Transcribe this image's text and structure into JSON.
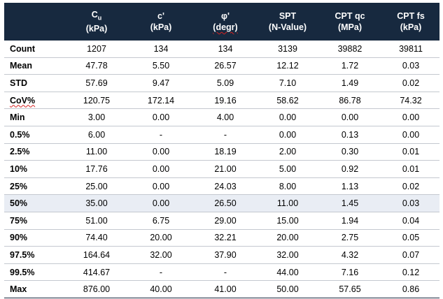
{
  "table": {
    "headers": [
      {
        "line1": "",
        "line2": ""
      },
      {
        "line1": "Cu",
        "line2": "(kPa)"
      },
      {
        "line1": "c'",
        "line2": "(kPa)"
      },
      {
        "line1": "φ'",
        "line2": "(degr)"
      },
      {
        "line1": "SPT",
        "line2": "(N-Value)"
      },
      {
        "line1": "CPT qc",
        "line2": "(MPa)"
      },
      {
        "line1": "CPT fs",
        "line2": "(kPa)"
      }
    ],
    "rows": [
      {
        "label": "Count",
        "cells": [
          "1207",
          "134",
          "134",
          "3139",
          "39882",
          "39811"
        ]
      },
      {
        "label": "Mean",
        "cells": [
          "47.78",
          "5.50",
          "26.57",
          "12.12",
          "1.72",
          "0.03"
        ]
      },
      {
        "label": "STD",
        "cells": [
          "57.69",
          "9.47",
          "5.09",
          "7.10",
          "1.49",
          "0.02"
        ]
      },
      {
        "label": "CoV%",
        "cells": [
          "120.75",
          "172.14",
          "19.16",
          "58.62",
          "86.78",
          "74.32"
        ]
      },
      {
        "label": "Min",
        "cells": [
          "3.00",
          "0.00",
          "4.00",
          "0.00",
          "0.00",
          "0.00"
        ]
      },
      {
        "label": "0.5%",
        "cells": [
          "6.00",
          "-",
          "-",
          "0.00",
          "0.13",
          "0.00"
        ]
      },
      {
        "label": "2.5%",
        "cells": [
          "11.00",
          "0.00",
          "18.19",
          "2.00",
          "0.30",
          "0.01"
        ]
      },
      {
        "label": "10%",
        "cells": [
          "17.76",
          "0.00",
          "21.00",
          "5.00",
          "0.92",
          "0.01"
        ]
      },
      {
        "label": "25%",
        "cells": [
          "25.00",
          "0.00",
          "24.03",
          "8.00",
          "1.13",
          "0.02"
        ]
      },
      {
        "label": "50%",
        "cells": [
          "35.00",
          "0.00",
          "26.50",
          "11.00",
          "1.45",
          "0.03"
        ]
      },
      {
        "label": "75%",
        "cells": [
          "51.00",
          "6.75",
          "29.00",
          "15.00",
          "1.94",
          "0.04"
        ]
      },
      {
        "label": "90%",
        "cells": [
          "74.40",
          "20.00",
          "32.21",
          "20.00",
          "2.75",
          "0.05"
        ]
      },
      {
        "label": "97.5%",
        "cells": [
          "164.64",
          "32.00",
          "37.90",
          "32.00",
          "4.32",
          "0.07"
        ]
      },
      {
        "label": "99.5%",
        "cells": [
          "414.67",
          "-",
          "-",
          "44.00",
          "7.16",
          "0.12"
        ]
      },
      {
        "label": "Max",
        "cells": [
          "876.00",
          "40.00",
          "41.00",
          "50.00",
          "57.65",
          "0.86"
        ]
      }
    ],
    "highlight_row": "50%",
    "colors": {
      "header_bg": "#17293f",
      "highlight_bg": "#e9edf4",
      "rule": "#c4c8cf"
    }
  }
}
